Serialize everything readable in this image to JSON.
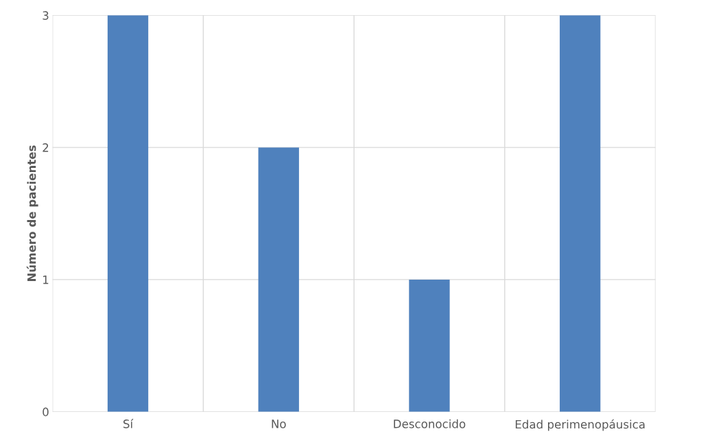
{
  "chart_data": {
    "type": "bar",
    "ylabel": "Número de pacientes",
    "categories": [
      "Sí",
      "No",
      "Desconocido",
      "Edad perimenopáusica"
    ],
    "values": [
      3,
      2,
      1,
      3
    ],
    "color": "#4f81bd",
    "ylim": [
      0,
      3
    ],
    "yticks": [
      0,
      1,
      2,
      3
    ],
    "grid": true
  }
}
